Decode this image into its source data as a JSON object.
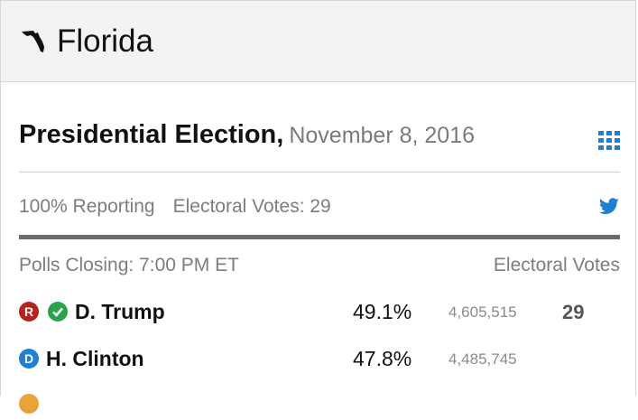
{
  "state": {
    "name": "Florida",
    "icon": "florida-state-icon"
  },
  "race": {
    "title": "Presidential Election,",
    "date": "November 8, 2016",
    "reporting": "100% Reporting",
    "electoral_votes_label": "Electoral Votes: 29",
    "polls_closing": "Polls Closing: 7:00 PM ET",
    "electoral_votes_header": "Electoral Votes"
  },
  "icons": {
    "grid": "grid-icon",
    "share": "twitter-icon"
  },
  "colors": {
    "republican": "#b5241b",
    "democrat": "#1f7fd1",
    "winner_check": "#2aa34a",
    "accent_blue": "#1f7fd1",
    "libertarian": "#e8a33a"
  },
  "candidates": [
    {
      "party": "R",
      "winner": true,
      "name": "D. Trump",
      "percent": "49.1%",
      "votes": "4,605,515",
      "electoral_votes": "29"
    },
    {
      "party": "D",
      "winner": false,
      "name": "H. Clinton",
      "percent": "47.8%",
      "votes": "4,485,745",
      "electoral_votes": ""
    }
  ]
}
